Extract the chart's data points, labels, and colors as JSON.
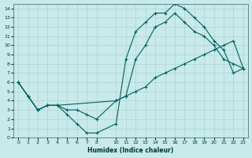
{
  "xlabel": "Humidex (Indice chaleur)",
  "bg_color": "#c8eaea",
  "grid_major_color": "#b0d4cc",
  "grid_minor_color": "#d8ecec",
  "line_color": "#006060",
  "xlim": [
    -0.5,
    23.5
  ],
  "ylim": [
    0,
    14.5
  ],
  "xticks": [
    0,
    1,
    2,
    3,
    4,
    5,
    6,
    7,
    8,
    10,
    11,
    12,
    13,
    14,
    15,
    16,
    17,
    18,
    19,
    20,
    21,
    22,
    23
  ],
  "yticks": [
    0,
    1,
    2,
    3,
    4,
    5,
    6,
    7,
    8,
    9,
    10,
    11,
    12,
    13,
    14
  ],
  "line1_x": [
    0,
    1,
    2,
    3,
    4,
    5,
    6,
    7,
    8,
    10,
    11,
    12,
    13,
    14,
    15,
    16,
    17,
    18,
    19,
    20,
    21,
    22,
    23
  ],
  "line1_y": [
    6,
    4.5,
    3,
    3.5,
    3.5,
    2.5,
    1.5,
    0.5,
    0.5,
    1.5,
    8.5,
    11.5,
    12.5,
    13.5,
    13.5,
    14.5,
    14,
    13,
    12,
    10.5,
    9.5,
    7,
    7.5
  ],
  "line2_x": [
    0,
    1,
    2,
    3,
    4,
    5,
    6,
    7,
    8,
    10,
    11,
    12,
    13,
    14,
    15,
    16,
    17,
    18,
    19,
    20,
    21,
    22,
    23
  ],
  "line2_y": [
    6,
    4.5,
    3,
    3.5,
    3.5,
    3,
    3,
    2.5,
    2,
    4,
    4.5,
    8.5,
    10,
    12,
    12.5,
    13.5,
    12.5,
    11.5,
    11,
    10,
    8.5,
    8,
    7.5
  ],
  "line3_x": [
    0,
    1,
    2,
    3,
    4,
    10,
    11,
    12,
    13,
    14,
    15,
    16,
    17,
    18,
    19,
    20,
    21,
    22,
    23
  ],
  "line3_y": [
    6,
    4.5,
    3,
    3.5,
    3.5,
    4,
    4.5,
    5,
    5.5,
    6.5,
    7,
    7.5,
    8,
    8.5,
    9,
    9.5,
    10,
    10.5,
    7.5
  ]
}
